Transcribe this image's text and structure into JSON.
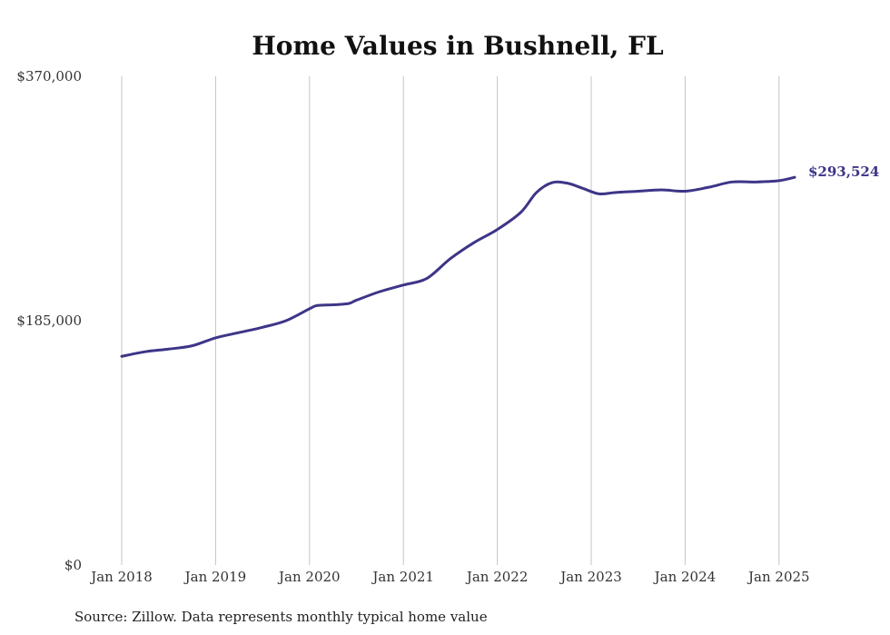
{
  "chart_data": {
    "type": "line",
    "title": "Home Values in Bushnell, FL",
    "source_note": "Source: Zillow. Data represents monthly typical home value",
    "ylim": [
      0,
      370000
    ],
    "y_ticks": [
      {
        "value": 0,
        "label": "$0"
      },
      {
        "value": 185000,
        "label": "$185,000"
      },
      {
        "value": 370000,
        "label": "$370,000"
      }
    ],
    "x_ticks": [
      {
        "value": "2018-01",
        "label": "Jan 2018"
      },
      {
        "value": "2019-01",
        "label": "Jan 2019"
      },
      {
        "value": "2020-01",
        "label": "Jan 2020"
      },
      {
        "value": "2021-01",
        "label": "Jan 2021"
      },
      {
        "value": "2022-01",
        "label": "Jan 2022"
      },
      {
        "value": "2023-01",
        "label": "Jan 2023"
      },
      {
        "value": "2024-01",
        "label": "Jan 2024"
      },
      {
        "value": "2025-01",
        "label": "Jan 2025"
      }
    ],
    "grid": {
      "vertical": true,
      "horizontal": false
    },
    "line_color": "#3d3587",
    "end_label": "$293,524",
    "series": [
      {
        "points": [
          [
            "2018-01",
            158000
          ],
          [
            "2018-04",
            161500
          ],
          [
            "2018-07",
            163500
          ],
          [
            "2018-10",
            166000
          ],
          [
            "2019-01",
            172000
          ],
          [
            "2019-04",
            176000
          ],
          [
            "2019-07",
            180000
          ],
          [
            "2019-10",
            185000
          ],
          [
            "2020-01",
            194000
          ],
          [
            "2020-02",
            196500
          ],
          [
            "2020-04",
            197000
          ],
          [
            "2020-06",
            198000
          ],
          [
            "2020-07",
            200500
          ],
          [
            "2020-10",
            207000
          ],
          [
            "2021-01",
            212000
          ],
          [
            "2021-04",
            217000
          ],
          [
            "2021-07",
            232000
          ],
          [
            "2021-10",
            244000
          ],
          [
            "2022-01",
            254000
          ],
          [
            "2022-04",
            267000
          ],
          [
            "2022-06",
            282000
          ],
          [
            "2022-08",
            289500
          ],
          [
            "2022-10",
            289000
          ],
          [
            "2022-12",
            285000
          ],
          [
            "2023-02",
            281000
          ],
          [
            "2023-04",
            282000
          ],
          [
            "2023-07",
            283000
          ],
          [
            "2023-10",
            284000
          ],
          [
            "2024-01",
            283000
          ],
          [
            "2024-04",
            286000
          ],
          [
            "2024-07",
            290000
          ],
          [
            "2024-10",
            290000
          ],
          [
            "2025-01",
            291000
          ],
          [
            "2025-03",
            293524
          ]
        ]
      }
    ]
  }
}
